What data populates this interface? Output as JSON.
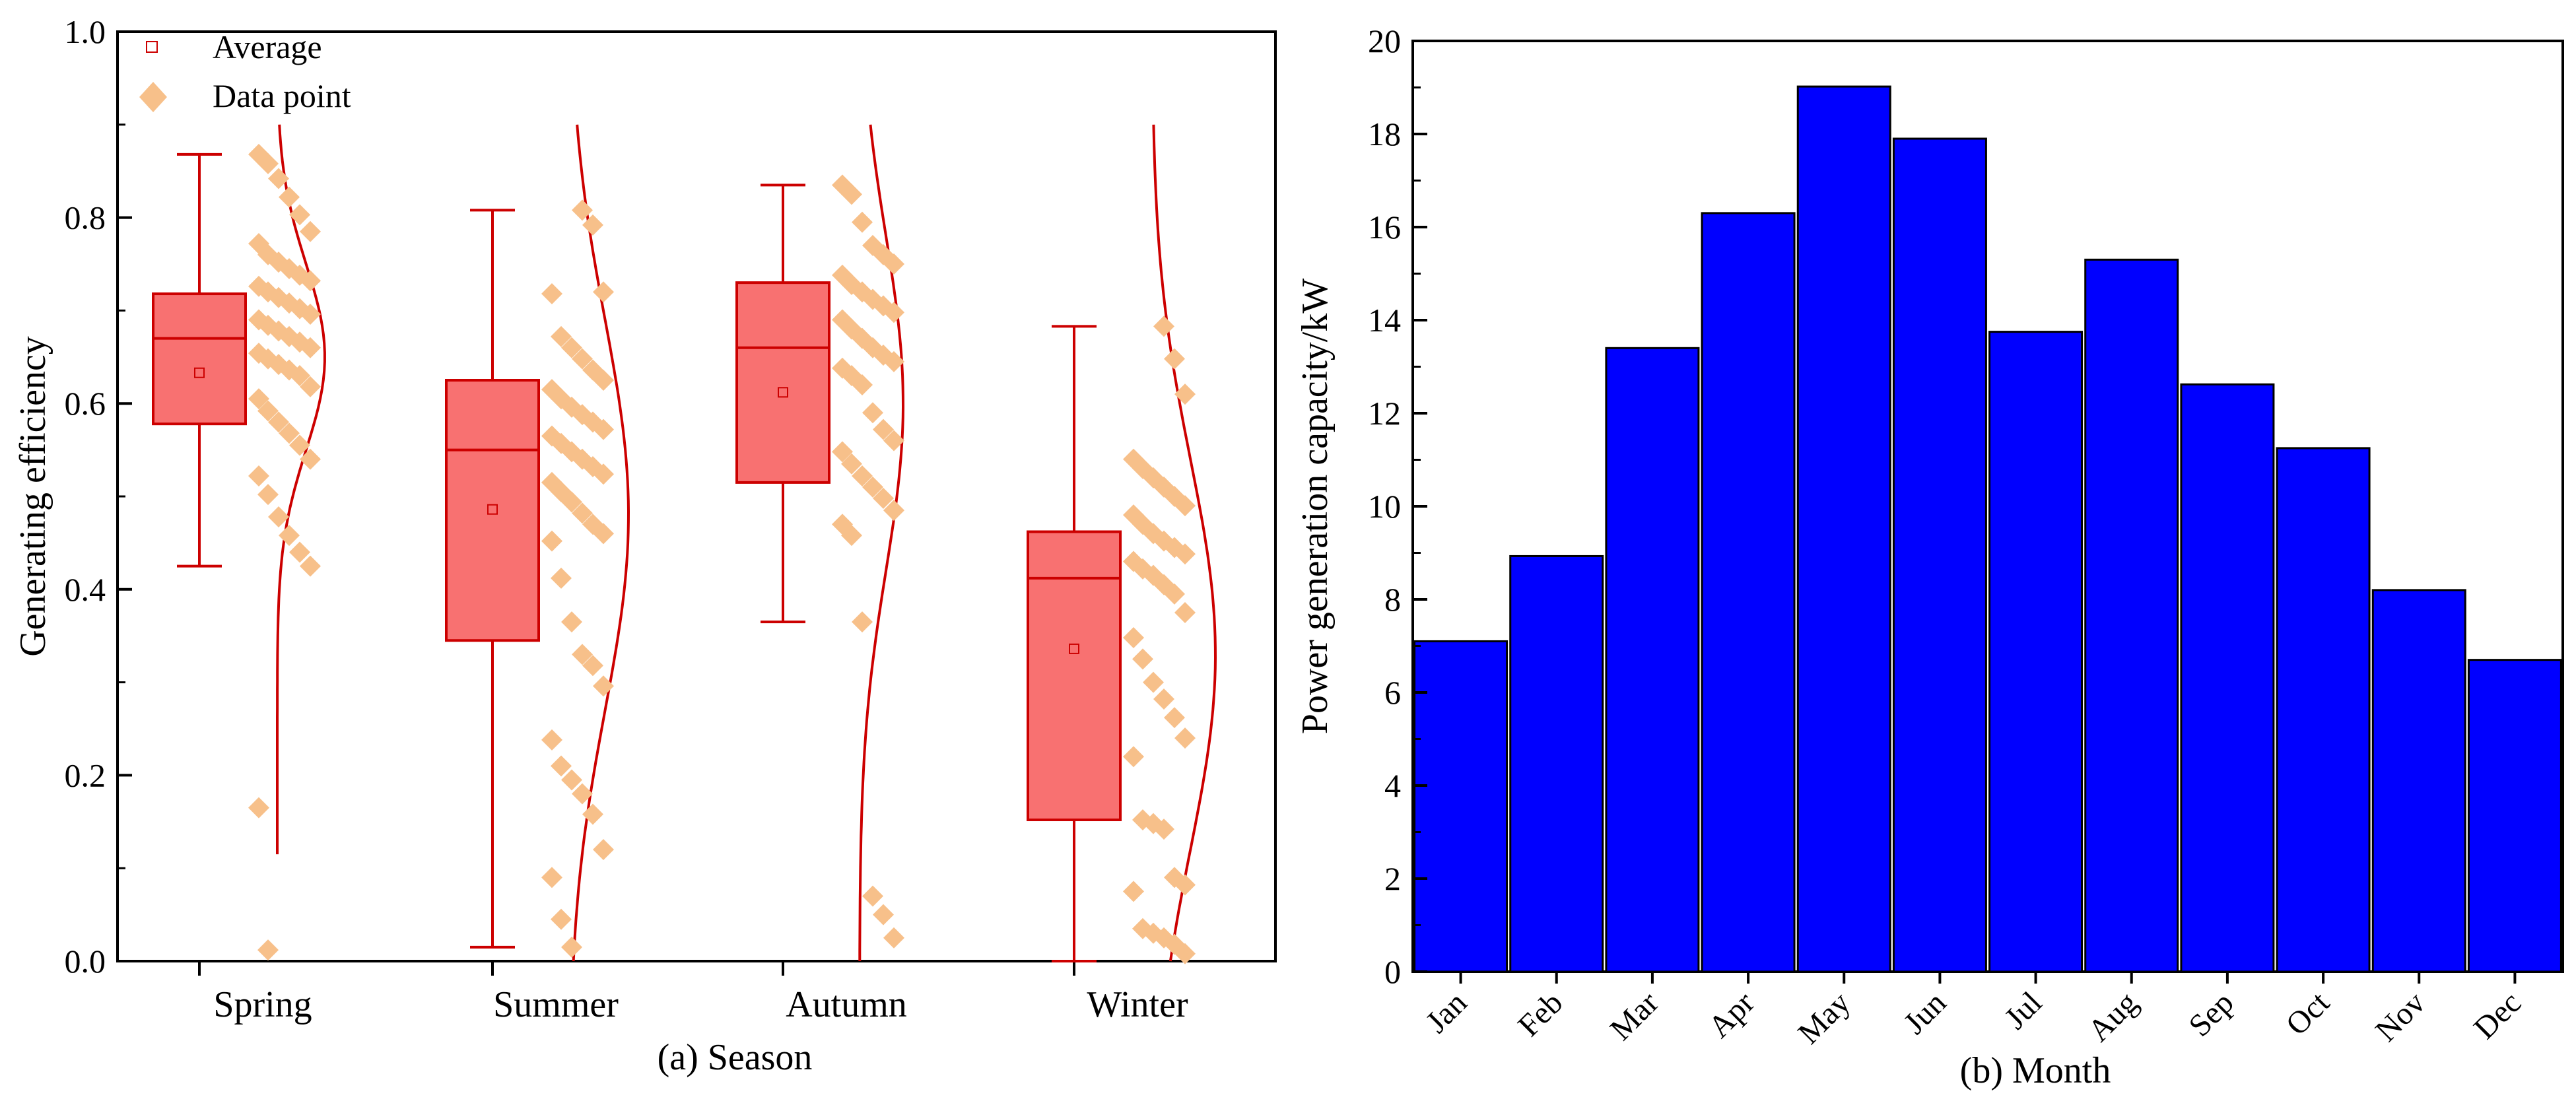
{
  "chart_data": [
    {
      "type": "box",
      "panel": "a",
      "xlabel": "(a) Season",
      "ylabel": "Generating efficiency",
      "ylim": [
        0,
        1.0
      ],
      "yticks": [
        0.0,
        0.2,
        0.4,
        0.6,
        0.8,
        1.0
      ],
      "ytick_labels": [
        "0.0",
        "0.2",
        "0.4",
        "0.6",
        "0.8",
        "1.0"
      ],
      "grid": false,
      "legend_position": "top-left",
      "legend": {
        "average_label": "Average",
        "data_point_label": "Data point"
      },
      "colors": {
        "box_fill": "#f87171",
        "box_stroke": "#cc0000",
        "points": "#f7c08a",
        "curve": "#cc0000"
      },
      "categories": [
        "Spring",
        "Summer",
        "Autumn",
        "Winter"
      ],
      "boxes": [
        {
          "name": "Spring",
          "whisker_low": 0.425,
          "q1": 0.578,
          "median": 0.67,
          "q3": 0.718,
          "whisker_high": 0.868,
          "mean": 0.633
        },
        {
          "name": "Summer",
          "whisker_low": 0.015,
          "q1": 0.345,
          "median": 0.55,
          "q3": 0.625,
          "whisker_high": 0.808,
          "mean": 0.486
        },
        {
          "name": "Autumn",
          "whisker_low": 0.365,
          "q1": 0.515,
          "median": 0.66,
          "q3": 0.73,
          "whisker_high": 0.835,
          "mean": 0.612
        },
        {
          "name": "Winter",
          "whisker_low": 0.0,
          "q1": 0.152,
          "median": 0.412,
          "q3": 0.462,
          "whisker_high": 0.683,
          "mean": 0.336
        }
      ],
      "distribution_curves": [
        {
          "name": "Spring",
          "mean": 0.65,
          "sd": 0.1,
          "y_range": [
            0.115,
            0.9
          ]
        },
        {
          "name": "Summer",
          "mean": 0.48,
          "sd": 0.21,
          "y_range": [
            0.0,
            0.9
          ]
        },
        {
          "name": "Autumn",
          "mean": 0.6,
          "sd": 0.18,
          "y_range": [
            0.0,
            0.9
          ]
        },
        {
          "name": "Winter",
          "mean": 0.33,
          "sd": 0.21,
          "y_range": [
            0.0,
            0.9
          ]
        }
      ],
      "points": [
        [
          0.868,
          0.858,
          0.842,
          0.822,
          0.803,
          0.785,
          0.772,
          0.76,
          0.752,
          0.745,
          0.738,
          0.732,
          0.726,
          0.72,
          0.714,
          0.708,
          0.702,
          0.696,
          0.69,
          0.684,
          0.678,
          0.672,
          0.666,
          0.66,
          0.654,
          0.648,
          0.642,
          0.636,
          0.63,
          0.618,
          0.605,
          0.592,
          0.58,
          0.568,
          0.555,
          0.54,
          0.522,
          0.502,
          0.478,
          0.458,
          0.44,
          0.425,
          0.165,
          0.012
        ],
        [
          0.808,
          0.792,
          0.72,
          0.718,
          0.672,
          0.66,
          0.648,
          0.636,
          0.625,
          0.615,
          0.605,
          0.596,
          0.588,
          0.58,
          0.572,
          0.565,
          0.557,
          0.548,
          0.54,
          0.532,
          0.524,
          0.515,
          0.505,
          0.494,
          0.482,
          0.47,
          0.46,
          0.452,
          0.412,
          0.365,
          0.33,
          0.318,
          0.296,
          0.238,
          0.21,
          0.195,
          0.18,
          0.158,
          0.12,
          0.09,
          0.045,
          0.015
        ],
        [
          0.835,
          0.825,
          0.795,
          0.77,
          0.76,
          0.75,
          0.738,
          0.728,
          0.72,
          0.712,
          0.705,
          0.698,
          0.69,
          0.68,
          0.67,
          0.66,
          0.652,
          0.645,
          0.638,
          0.63,
          0.62,
          0.59,
          0.572,
          0.56,
          0.548,
          0.535,
          0.522,
          0.51,
          0.498,
          0.485,
          0.47,
          0.458,
          0.365,
          0.07,
          0.05,
          0.025
        ],
        [
          0.683,
          0.648,
          0.61,
          0.54,
          0.53,
          0.52,
          0.51,
          0.5,
          0.49,
          0.48,
          0.47,
          0.46,
          0.452,
          0.445,
          0.438,
          0.43,
          0.422,
          0.415,
          0.405,
          0.395,
          0.375,
          0.348,
          0.325,
          0.3,
          0.282,
          0.262,
          0.24,
          0.22,
          0.152,
          0.148,
          0.142,
          0.09,
          0.082,
          0.075,
          0.035,
          0.03,
          0.025,
          0.018,
          0.008
        ]
      ]
    },
    {
      "type": "bar",
      "panel": "b",
      "xlabel": "(b) Month",
      "ylabel": "Power generation capacity/kW",
      "ylim": [
        0,
        20
      ],
      "yticks": [
        0,
        2,
        4,
        6,
        8,
        10,
        12,
        14,
        16,
        18,
        20
      ],
      "ytick_labels": [
        "0",
        "2",
        "4",
        "6",
        "8",
        "10",
        "12",
        "14",
        "16",
        "18",
        "20"
      ],
      "grid": false,
      "color": "#0000ff",
      "categories": [
        "Jan",
        "Feb",
        "Mar",
        "Apr",
        "May",
        "Jun",
        "Jul",
        "Aug",
        "Sep",
        "Oct",
        "Nov",
        "Dec"
      ],
      "values": [
        7.1,
        8.93,
        13.4,
        16.3,
        19.02,
        17.9,
        13.75,
        15.3,
        12.62,
        11.25,
        8.2,
        6.7
      ]
    }
  ]
}
